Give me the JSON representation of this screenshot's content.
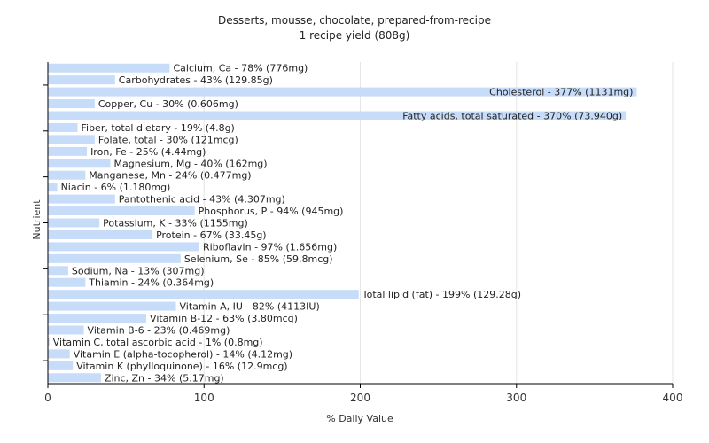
{
  "chart_data": {
    "type": "bar",
    "orientation": "horizontal",
    "title": "Desserts, mousse, chocolate, prepared-from-recipe",
    "subtitle": "1 recipe yield (808g)",
    "xlabel": "% Daily Value",
    "ylabel": "Nutrient",
    "xlim": [
      0,
      400
    ],
    "xticks": [
      0,
      100,
      200,
      300,
      400
    ],
    "grid": true,
    "bar_color": "#c6dcf8",
    "categories": [
      "Calcium, Ca",
      "Carbohydrates",
      "Cholesterol",
      "Copper, Cu",
      "Fatty acids, total saturated",
      "Fiber, total dietary",
      "Folate, total",
      "Iron, Fe",
      "Magnesium, Mg",
      "Manganese, Mn",
      "Niacin",
      "Pantothenic acid",
      "Phosphorus, P",
      "Potassium, K",
      "Protein",
      "Riboflavin",
      "Selenium, Se",
      "Sodium, Na",
      "Thiamin",
      "Total lipid (fat)",
      "Vitamin A, IU",
      "Vitamin B-12",
      "Vitamin B-6",
      "Vitamin C, total ascorbic acid",
      "Vitamin E (alpha-tocopherol)",
      "Vitamin K (phylloquinone)",
      "Zinc, Zn"
    ],
    "values": [
      78,
      43,
      377,
      30,
      370,
      19,
      30,
      25,
      40,
      24,
      6,
      43,
      94,
      33,
      67,
      97,
      85,
      13,
      24,
      199,
      82,
      63,
      23,
      1,
      14,
      16,
      34
    ],
    "labels": [
      "Calcium, Ca - 78% (776mg)",
      "Carbohydrates - 43% (129.85g)",
      "Cholesterol - 377% (1131mg)",
      "Copper, Cu - 30% (0.606mg)",
      "Fatty acids, total saturated - 370% (73.940g)",
      "Fiber, total dietary - 19% (4.8g)",
      "Folate, total - 30% (121mcg)",
      "Iron, Fe - 25% (4.44mg)",
      "Magnesium, Mg - 40% (162mg)",
      "Manganese, Mn - 24% (0.477mg)",
      "Niacin - 6% (1.180mg)",
      "Pantothenic acid - 43% (4.307mg)",
      "Phosphorus, P - 94% (945mg)",
      "Potassium, K - 33% (1155mg)",
      "Protein - 67% (33.45g)",
      "Riboflavin - 97% (1.656mg)",
      "Selenium, Se - 85% (59.8mcg)",
      "Sodium, Na - 13% (307mg)",
      "Thiamin - 24% (0.364mg)",
      "Total lipid (fat) - 199% (129.28g)",
      "Vitamin A, IU - 82% (4113IU)",
      "Vitamin B-12 - 63% (3.80mcg)",
      "Vitamin B-6 - 23% (0.469mg)",
      "Vitamin C, total ascorbic acid - 1% (0.8mg)",
      "Vitamin E (alpha-tocopherol) - 14% (4.12mg)",
      "Vitamin K (phylloquinone) - 16% (12.9mcg)",
      "Zinc, Zn - 34% (5.17mg)"
    ]
  }
}
